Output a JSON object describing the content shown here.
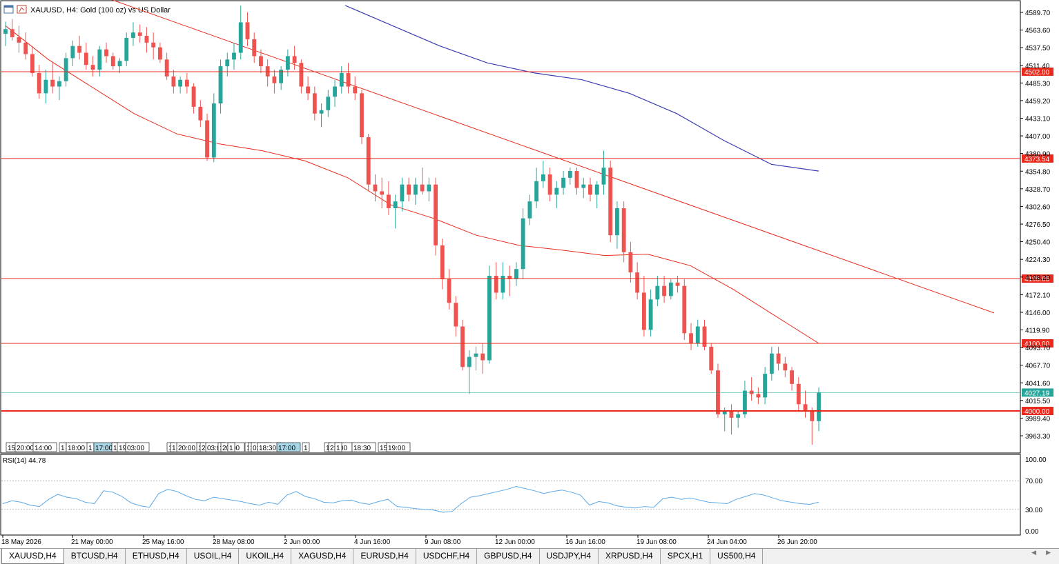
{
  "chart_header": {
    "title": "XAUUSD, H4:  Gold (100 oz) vs US Dollar",
    "icons": [
      "chart-window-icon",
      "chart-type-icon"
    ]
  },
  "rsi": {
    "label": "RSI(14) 44.78",
    "levels": [
      "100.00",
      "70.00",
      "30.00",
      "0.00"
    ]
  },
  "price_axis_labels": [
    "4589.70",
    "4563.60",
    "4537.50",
    "4511.40",
    "4485.30",
    "4459.20",
    "4433.10",
    "4407.00",
    "4380.90",
    "4354.80",
    "4328.70",
    "4302.60",
    "4276.50",
    "4250.40",
    "4224.30",
    "4198.20",
    "4172.10",
    "4146.00",
    "4119.90",
    "4093.70",
    "4067.70",
    "4041.60",
    "4015.50",
    "3989.40",
    "3963.30"
  ],
  "horizontal_levels": [
    {
      "label": "4502.00",
      "color": "#e8291c"
    },
    {
      "label": "4373.54",
      "color": "#e8291c"
    },
    {
      "label": "4195.85",
      "color": "#e8291c"
    },
    {
      "label": "4100.00",
      "color": "#e8291c"
    },
    {
      "label": "4000.00",
      "color": "#e8291c"
    }
  ],
  "current_price": {
    "label": "4027.19",
    "color": "#26a69a"
  },
  "time_axis_labels": [
    "18 May 2026",
    "21 May 00:00",
    "25 May 16:00",
    "28 May 08:00",
    "2 Jun 00:00",
    "4 Jun 16:00",
    "9 Jun 08:00",
    "12 Jun 00:00",
    "16 Jun 16:00",
    "19 Jun 08:00",
    "24 Jun 04:00",
    "26 Jun 20:00"
  ],
  "session_labels": [
    "15",
    "20:00",
    "14:00",
    "1",
    "18:00",
    "1",
    "17:00",
    "1",
    "19",
    "03:00",
    "1",
    "1",
    "20:00",
    "1",
    "2",
    "03:0",
    "1",
    "20:00",
    "1",
    "1",
    "1",
    "03:3",
    "18:30",
    "17:00",
    "1",
    "1",
    "21:00",
    "1",
    "18:30",
    "15",
    "19:00"
  ],
  "tabs": [
    "XAUUSD,H4",
    "BTCUSD,H4",
    "ETHUSD,H4",
    "USOIL,H4",
    "UKOIL,H4",
    "XAGUSD,H4",
    "EURUSD,H4",
    "USDCHF,H4",
    "GBPUSD,H4",
    "USDJPY,H4",
    "XRPUSD,H4",
    "SPCX,H1",
    "US500,H4"
  ],
  "active_tab": "XAUUSD,H4",
  "colors": {
    "bull": "#26a69a",
    "bear": "#ef5350",
    "ma_fast": "#e8291c",
    "ma_slow": "#3c3cb4",
    "rsi_line": "#5aa8e8",
    "current_price": "#26a69a"
  },
  "chart_data": {
    "type": "candlestick",
    "symbol": "XAUUSD",
    "timeframe": "H4",
    "ylim": [
      3943,
      4610
    ],
    "candles": [
      [
        4558,
        4576,
        4540,
        4565
      ],
      [
        4565,
        4580,
        4548,
        4553
      ],
      [
        4553,
        4570,
        4530,
        4545
      ],
      [
        4545,
        4560,
        4520,
        4528
      ],
      [
        4528,
        4540,
        4495,
        4500
      ],
      [
        4500,
        4512,
        4462,
        4470
      ],
      [
        4470,
        4505,
        4455,
        4490
      ],
      [
        4490,
        4515,
        4470,
        4480
      ],
      [
        4480,
        4495,
        4460,
        4488
      ],
      [
        4488,
        4530,
        4480,
        4522
      ],
      [
        4522,
        4548,
        4510,
        4540
      ],
      [
        4540,
        4555,
        4520,
        4530
      ],
      [
        4530,
        4545,
        4505,
        4512
      ],
      [
        4512,
        4525,
        4495,
        4505
      ],
      [
        4505,
        4540,
        4495,
        4535
      ],
      [
        4535,
        4545,
        4515,
        4525
      ],
      [
        4525,
        4530,
        4505,
        4510
      ],
      [
        4510,
        4522,
        4500,
        4518
      ],
      [
        4518,
        4560,
        4510,
        4552
      ],
      [
        4552,
        4575,
        4540,
        4560
      ],
      [
        4560,
        4572,
        4545,
        4555
      ],
      [
        4555,
        4568,
        4530,
        4545
      ],
      [
        4545,
        4560,
        4520,
        4538
      ],
      [
        4538,
        4545,
        4515,
        4520
      ],
      [
        4520,
        4530,
        4490,
        4495
      ],
      [
        4495,
        4505,
        4470,
        4480
      ],
      [
        4480,
        4495,
        4470,
        4490
      ],
      [
        4490,
        4500,
        4470,
        4480
      ],
      [
        4480,
        4485,
        4440,
        4450
      ],
      [
        4450,
        4460,
        4420,
        4430
      ],
      [
        4430,
        4440,
        4370,
        4375
      ],
      [
        4375,
        4470,
        4368,
        4455
      ],
      [
        4455,
        4520,
        4440,
        4510
      ],
      [
        4510,
        4530,
        4495,
        4520
      ],
      [
        4520,
        4545,
        4505,
        4530
      ],
      [
        4530,
        4600,
        4520,
        4575
      ],
      [
        4575,
        4590,
        4540,
        4550
      ],
      [
        4550,
        4560,
        4515,
        4525
      ],
      [
        4525,
        4535,
        4500,
        4510
      ],
      [
        4510,
        4520,
        4480,
        4495
      ],
      [
        4495,
        4505,
        4470,
        4485
      ],
      [
        4485,
        4510,
        4475,
        4505
      ],
      [
        4505,
        4535,
        4495,
        4525
      ],
      [
        4525,
        4540,
        4505,
        4515
      ],
      [
        4515,
        4520,
        4470,
        4480
      ],
      [
        4480,
        4495,
        4460,
        4470
      ],
      [
        4470,
        4480,
        4430,
        4440
      ],
      [
        4440,
        4455,
        4420,
        4445
      ],
      [
        4445,
        4475,
        4435,
        4465
      ],
      [
        4465,
        4490,
        4450,
        4480
      ],
      [
        4480,
        4510,
        4470,
        4500
      ],
      [
        4500,
        4515,
        4470,
        4480
      ],
      [
        4480,
        4495,
        4460,
        4470
      ],
      [
        4470,
        4475,
        4395,
        4405
      ],
      [
        4405,
        4410,
        4325,
        4335
      ],
      [
        4335,
        4350,
        4310,
        4325
      ],
      [
        4325,
        4345,
        4300,
        4320
      ],
      [
        4320,
        4340,
        4290,
        4300
      ],
      [
        4300,
        4320,
        4270,
        4310
      ],
      [
        4310,
        4345,
        4295,
        4335
      ],
      [
        4335,
        4345,
        4310,
        4320
      ],
      [
        4320,
        4345,
        4305,
        4335
      ],
      [
        4335,
        4360,
        4320,
        4325
      ],
      [
        4325,
        4345,
        4310,
        4335
      ],
      [
        4335,
        4345,
        4230,
        4245
      ],
      [
        4245,
        4255,
        4180,
        4195
      ],
      [
        4195,
        4210,
        4150,
        4160
      ],
      [
        4160,
        4170,
        4110,
        4125
      ],
      [
        4125,
        4135,
        4060,
        4065
      ],
      [
        4065,
        4090,
        4025,
        4080
      ],
      [
        4080,
        4095,
        4060,
        4085
      ],
      [
        4085,
        4100,
        4055,
        4075
      ],
      [
        4075,
        4215,
        4070,
        4200
      ],
      [
        4200,
        4220,
        4165,
        4175
      ],
      [
        4175,
        4220,
        4165,
        4200
      ],
      [
        4200,
        4215,
        4170,
        4195
      ],
      [
        4195,
        4220,
        4185,
        4210
      ],
      [
        4210,
        4300,
        4195,
        4285
      ],
      [
        4285,
        4320,
        4275,
        4310
      ],
      [
        4310,
        4360,
        4300,
        4340
      ],
      [
        4340,
        4370,
        4330,
        4350
      ],
      [
        4350,
        4360,
        4310,
        4320
      ],
      [
        4320,
        4340,
        4300,
        4330
      ],
      [
        4330,
        4355,
        4320,
        4345
      ],
      [
        4345,
        4360,
        4335,
        4355
      ],
      [
        4355,
        4360,
        4320,
        4330
      ],
      [
        4330,
        4345,
        4315,
        4335
      ],
      [
        4335,
        4345,
        4310,
        4320
      ],
      [
        4320,
        4340,
        4300,
        4335
      ],
      [
        4335,
        4385,
        4320,
        4360
      ],
      [
        4360,
        4370,
        4250,
        4260
      ],
      [
        4260,
        4310,
        4240,
        4300
      ],
      [
        4300,
        4310,
        4220,
        4235
      ],
      [
        4235,
        4250,
        4190,
        4205
      ],
      [
        4205,
        4220,
        4165,
        4175
      ],
      [
        4175,
        4200,
        4110,
        4120
      ],
      [
        4120,
        4180,
        4110,
        4165
      ],
      [
        4165,
        4200,
        4155,
        4185
      ],
      [
        4185,
        4200,
        4160,
        4170
      ],
      [
        4170,
        4195,
        4165,
        4190
      ],
      [
        4190,
        4200,
        4175,
        4185
      ],
      [
        4185,
        4195,
        4105,
        4115
      ],
      [
        4115,
        4130,
        4090,
        4100
      ],
      [
        4100,
        4135,
        4095,
        4125
      ],
      [
        4125,
        4135,
        4090,
        4095
      ],
      [
        4095,
        4100,
        4055,
        4060
      ],
      [
        4060,
        4070,
        3990,
        3995
      ],
      [
        3995,
        4005,
        3970,
        4000
      ],
      [
        4000,
        4010,
        3965,
        3990
      ],
      [
        3990,
        4000,
        3975,
        3995
      ],
      [
        3995,
        4045,
        3990,
        4030
      ],
      [
        4030,
        4050,
        4015,
        4025
      ],
      [
        4025,
        4035,
        4010,
        4020
      ],
      [
        4020,
        4065,
        4010,
        4055
      ],
      [
        4055,
        4095,
        4045,
        4085
      ],
      [
        4085,
        4095,
        4060,
        4070
      ],
      [
        4070,
        4080,
        4050,
        4060
      ],
      [
        4060,
        4065,
        4030,
        4040
      ],
      [
        4040,
        4050,
        4000,
        4010
      ],
      [
        4010,
        4030,
        3990,
        4000
      ],
      [
        4000,
        4005,
        3950,
        3985
      ],
      [
        3985,
        4035,
        3970,
        4027
      ]
    ],
    "ma_fast": [
      4570,
      4520,
      4480,
      4440,
      4410,
      4395,
      4385,
      4370,
      4345,
      4305,
      4285,
      4260,
      4245,
      4238,
      4230,
      4232,
      4215,
      4180,
      4140,
      4100
    ],
    "ma_slow": [
      4600,
      4570,
      4540,
      4515,
      4500,
      4490,
      4470,
      4440,
      4400,
      4365,
      4355
    ],
    "trendline": [
      [
        0,
        4620
      ],
      [
        1,
        4145
      ]
    ],
    "rsi_values": [
      38,
      42,
      40,
      36,
      34,
      44,
      51,
      47,
      45,
      40,
      38,
      56,
      54,
      48,
      39,
      35,
      33,
      52,
      58,
      55,
      49,
      44,
      42,
      47,
      45,
      43,
      41,
      38,
      36,
      40,
      37,
      50,
      55,
      48,
      45,
      40,
      39,
      42,
      43,
      39,
      37,
      41,
      44,
      34,
      33,
      31,
      30,
      29,
      26,
      27,
      38,
      47,
      49,
      52,
      55,
      58,
      62,
      59,
      56,
      52,
      55,
      57,
      54,
      50,
      36,
      41,
      39,
      35,
      33,
      32,
      34,
      33,
      45,
      47,
      44,
      46,
      43,
      40,
      39,
      38,
      44,
      48,
      52,
      50,
      46,
      42,
      40,
      38,
      37,
      40
    ],
    "rsi_ylim": [
      0,
      100
    ]
  }
}
